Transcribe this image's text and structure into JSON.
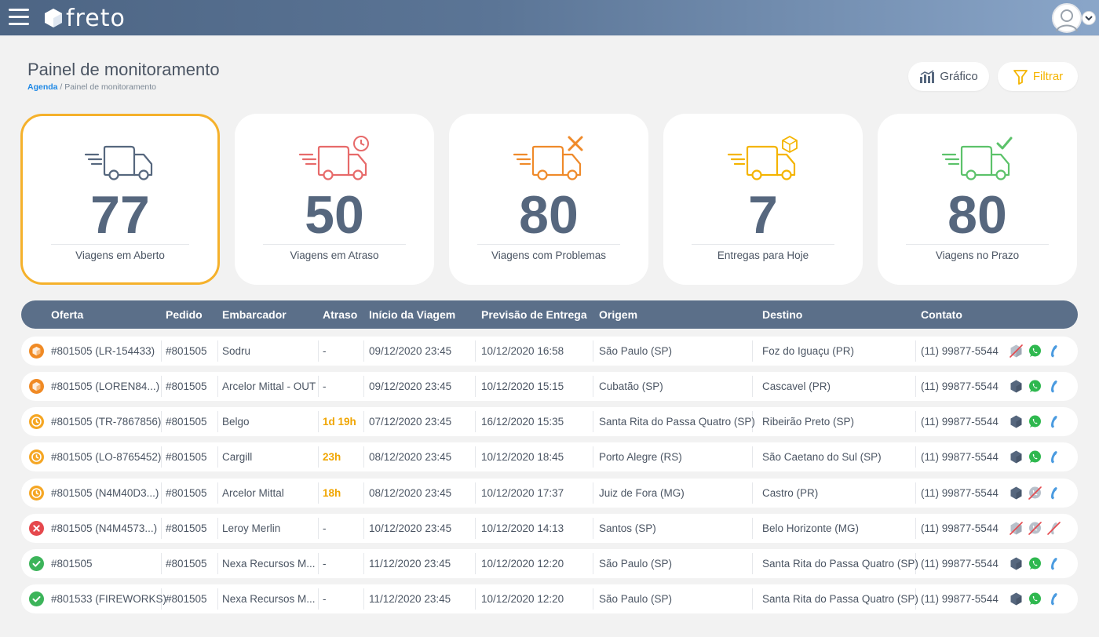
{
  "app": {
    "brand": "freto"
  },
  "header": {
    "title": "Painel de monitoramento",
    "breadcrumb_link": "Agenda",
    "breadcrumb_sep": " / ",
    "breadcrumb_current": "Painel de monitoramento",
    "grafico_label": "Gráfico",
    "filtrar_label": "Filtrar"
  },
  "cards": [
    {
      "value": "77",
      "label": "Viagens em Aberto",
      "color": "#56677e",
      "badge": "none"
    },
    {
      "value": "50",
      "label": "Viagens em Atraso",
      "color": "#e76a6a",
      "badge": "clock-icon"
    },
    {
      "value": "80",
      "label": "Viagens com Problemas",
      "color": "#ef8a2a",
      "badge": "tools-icon"
    },
    {
      "value": "7",
      "label": "Entregas para Hoje",
      "color": "#f4b400",
      "badge": "box-icon"
    },
    {
      "value": "80",
      "label": "Viagens no Prazo",
      "color": "#5cc26a",
      "badge": "check-icon"
    }
  ],
  "table": {
    "columns": [
      "Oferta",
      "Pedido",
      "Embarcador",
      "Atraso",
      "Início da Viagem",
      "Previsão de Entrega",
      "Origem",
      "Destino",
      "Contato"
    ],
    "rows": [
      {
        "status": "box",
        "oferta": "#801505 (LR-154433)",
        "pedido": "#801505",
        "embarcador": "Sodru",
        "atraso": "-",
        "inicio": "09/12/2020 23:45",
        "previsao": "10/12/2020 16:58",
        "origem": "São Paulo (SP)",
        "destino": "Foz do Iguaçu (PR)",
        "contato": "(11) 99877-5544",
        "actions": [
          "disabled",
          "enabled",
          "enabled"
        ]
      },
      {
        "status": "box",
        "oferta": "#801505 (LOREN84...)",
        "pedido": "#801505",
        "embarcador": "Arcelor Mittal - OUT",
        "atraso": "-",
        "inicio": "09/12/2020 23:45",
        "previsao": "10/12/2020 15:15",
        "origem": "Cubatão (SP)",
        "destino": "Cascavel (PR)",
        "contato": "(11) 99877-5544",
        "actions": [
          "enabled",
          "enabled",
          "enabled"
        ]
      },
      {
        "status": "clock",
        "oferta": "#801505 (TR-7867856)",
        "pedido": "#801505",
        "embarcador": "Belgo",
        "atraso": "1d 19h",
        "inicio": "07/12/2020 23:45",
        "previsao": "16/12/2020 15:35",
        "origem": "Santa Rita do Passa Quatro (SP)",
        "destino": "Ribeirão Preto (SP)",
        "contato": "(11) 99877-5544",
        "actions": [
          "enabled",
          "enabled",
          "enabled"
        ]
      },
      {
        "status": "clock",
        "oferta": "#801505 (LO-8765452)",
        "pedido": "#801505",
        "embarcador": "Cargill",
        "atraso": "23h",
        "inicio": "08/12/2020 23:45",
        "previsao": "10/12/2020 18:45",
        "origem": "Porto Alegre (RS)",
        "destino": "São Caetano do Sul (SP)",
        "contato": "(11) 99877-5544",
        "actions": [
          "enabled",
          "enabled",
          "enabled"
        ]
      },
      {
        "status": "clock",
        "oferta": "#801505 (N4M40D3...)",
        "pedido": "#801505",
        "embarcador": "Arcelor Mittal",
        "atraso": "18h",
        "inicio": "08/12/2020 23:45",
        "previsao": "10/12/2020 17:37",
        "origem": "Juiz de Fora (MG)",
        "destino": "Castro (PR)",
        "contato": "(11) 99877-5544",
        "actions": [
          "enabled",
          "disabled",
          "enabled"
        ]
      },
      {
        "status": "error",
        "oferta": "#801505 (N4M4573...)",
        "pedido": "#801505",
        "embarcador": "Leroy Merlin",
        "atraso": "-",
        "inicio": "10/12/2020 23:45",
        "previsao": "10/12/2020 14:13",
        "origem": "Santos (SP)",
        "destino": "Belo Horizonte (MG)",
        "contato": "(11) 99877-5544",
        "actions": [
          "disabled",
          "disabled",
          "disabled"
        ]
      },
      {
        "status": "ok",
        "oferta": "#801505",
        "pedido": "#801505",
        "embarcador": "Nexa Recursos M...",
        "atraso": "-",
        "inicio": "11/12/2020 23:45",
        "previsao": "10/12/2020 12:20",
        "origem": "São Paulo (SP)",
        "destino": "Santa Rita do Passa Quatro (SP)",
        "contato": "(11) 99877-5544",
        "actions": [
          "enabled",
          "enabled",
          "enabled"
        ]
      },
      {
        "status": "ok",
        "oferta": "#801533 (FIREWORKS)",
        "pedido": "#801505",
        "embarcador": "Nexa Recursos M...",
        "atraso": "-",
        "inicio": "11/12/2020 23:45",
        "previsao": "10/12/2020 12:20",
        "origem": "São Paulo (SP)",
        "destino": "Santa Rita do Passa Quatro (SP)",
        "contato": "(11) 99877-5544",
        "actions": [
          "enabled",
          "enabled",
          "enabled"
        ]
      }
    ]
  },
  "colors": {
    "accent_blue": "#1e88e5",
    "header_bg": "#5b6f89",
    "warn": "#f0a500",
    "ok": "#3cb45a",
    "error": "#e5484d"
  }
}
